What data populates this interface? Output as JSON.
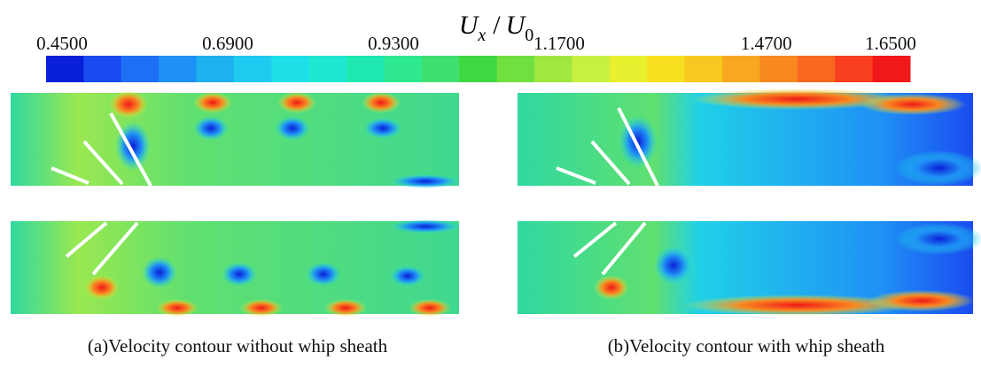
{
  "colorbar": {
    "title": {
      "u1": "U",
      "s1": "x",
      "sep": "/",
      "u2": "U",
      "s2": "0"
    },
    "min": 0.45,
    "max": 1.65,
    "ticks": [
      {
        "value": 0.45,
        "label": "0.4500"
      },
      {
        "value": 0.69,
        "label": "0.6900"
      },
      {
        "value": 0.93,
        "label": "0.9300"
      },
      {
        "value": 1.17,
        "label": "1.1700"
      },
      {
        "value": 1.47,
        "label": "1.4700"
      },
      {
        "value": 1.65,
        "label": "1.6500"
      }
    ],
    "colors": [
      "#0a1fd8",
      "#1a4bf0",
      "#1f6ff5",
      "#1f90f5",
      "#1fb0f0",
      "#1fcaf0",
      "#1fe0e8",
      "#1fe8d0",
      "#1fe8b0",
      "#2ee890",
      "#40e070",
      "#40d840",
      "#70e040",
      "#a0e840",
      "#c8f040",
      "#e8f030",
      "#f8e020",
      "#f8c820",
      "#f8a820",
      "#f88820",
      "#f86820",
      "#f84020",
      "#f01818"
    ]
  },
  "captions": [
    "(a)Velocity contour without whip sheath",
    "(b)Velocity contour with whip sheath"
  ]
}
